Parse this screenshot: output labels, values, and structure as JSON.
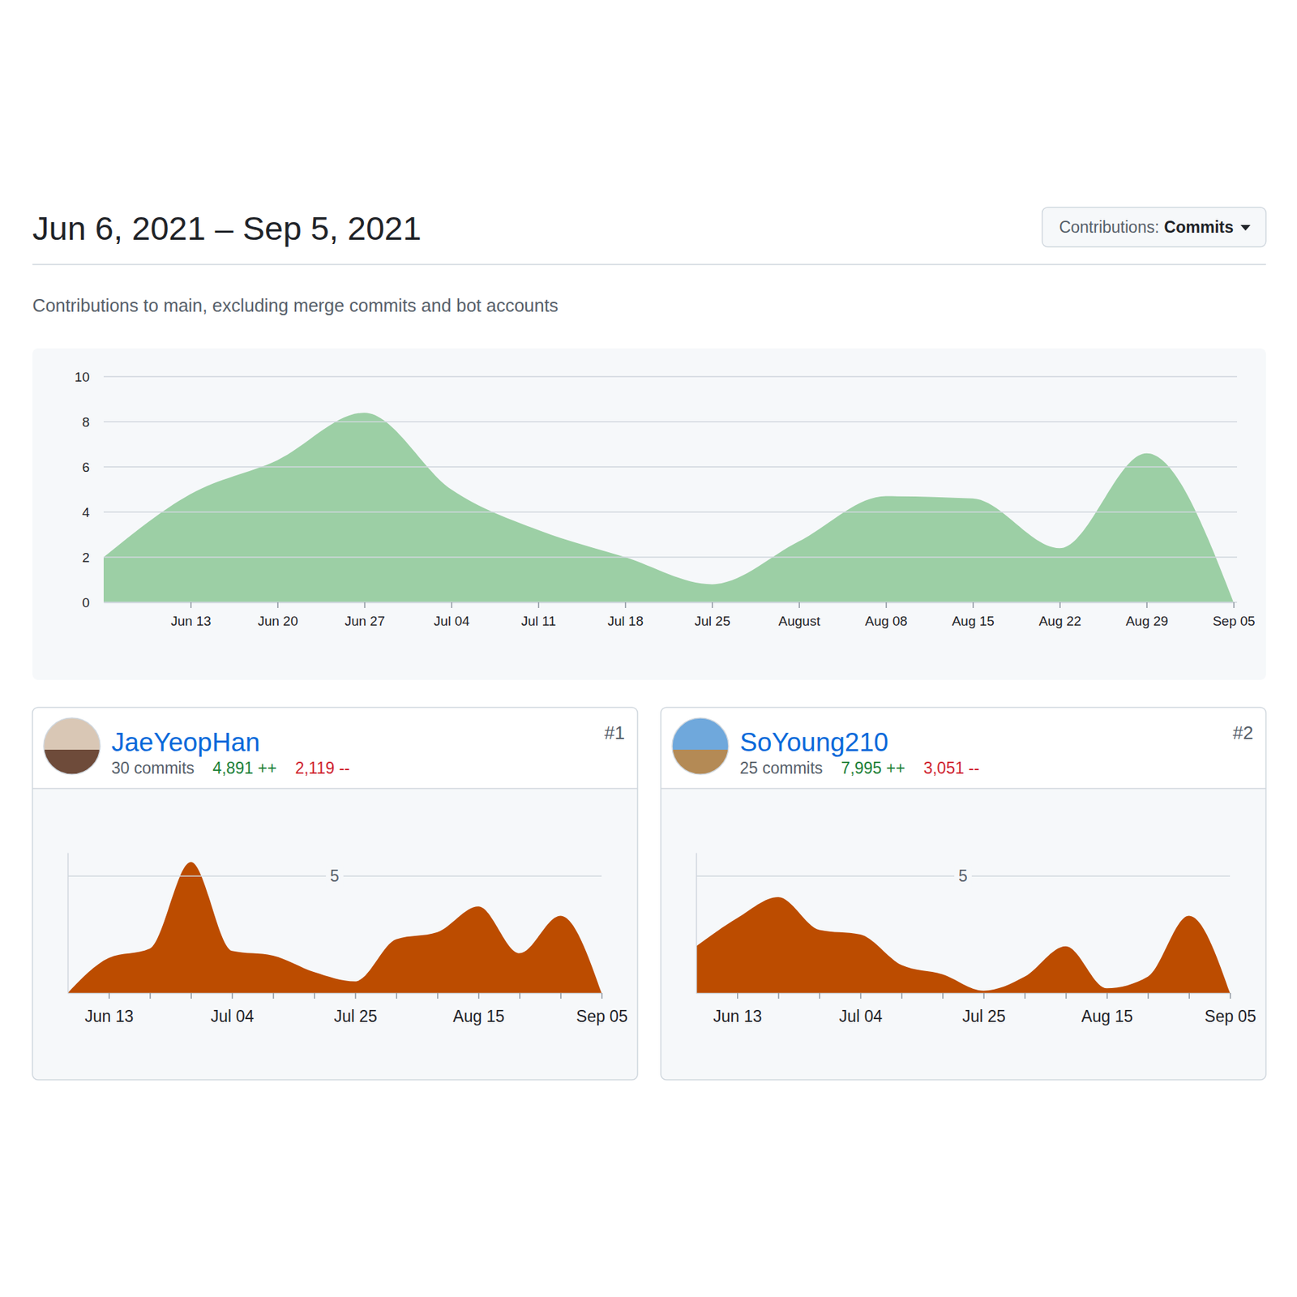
{
  "page": {
    "title": "Jun 6, 2021 – Sep 5, 2021",
    "filter_label": "Contributions:",
    "filter_value": "Commits",
    "subtitle": "Contributions to main, excluding merge commits and bot accounts"
  },
  "contributors": [
    {
      "name": "JaeYeopHan",
      "rank": "#1",
      "commits": "30 commits",
      "additions": "4,891 ++",
      "deletions": "2,119 --"
    },
    {
      "name": "SoYoung210",
      "rank": "#2",
      "commits": "25 commits",
      "additions": "7,995 ++",
      "deletions": "3,051 --"
    }
  ],
  "chart_data": [
    {
      "type": "area",
      "categories": [
        null,
        "Jun 13",
        "Jun 20",
        "Jun 27",
        "Jul 04",
        "Jul 11",
        "Jul 18",
        "Jul 25",
        "August",
        "Aug 08",
        "Aug 15",
        "Aug 22",
        "Aug 29",
        "Sep 05"
      ],
      "values": [
        2,
        4.8,
        6.3,
        8.4,
        5,
        3.2,
        2,
        0.8,
        2.7,
        4.7,
        4.6,
        2.4,
        6.6,
        0
      ],
      "color": "#9ccfa5",
      "ylim": [
        0,
        10
      ],
      "yticks": [
        0,
        2,
        4,
        6,
        8,
        10
      ],
      "grid": true
    },
    {
      "type": "area",
      "categories": [
        null,
        "Jun 13",
        null,
        null,
        "Jul 04",
        null,
        null,
        "Jul 25",
        null,
        null,
        "Aug 15",
        null,
        null,
        "Sep 05"
      ],
      "values": [
        0,
        1.5,
        1.9,
        5.6,
        1.8,
        1.6,
        0.9,
        0.5,
        2.3,
        2.6,
        3.7,
        1.7,
        3.3,
        0
      ],
      "color": "#bc4c00",
      "ylim": [
        0,
        6
      ],
      "yticks": [
        5
      ],
      "grid": true
    },
    {
      "type": "area",
      "categories": [
        null,
        "Jun 13",
        null,
        null,
        "Jul 04",
        null,
        null,
        "Jul 25",
        null,
        null,
        "Aug 15",
        null,
        null,
        "Sep 05"
      ],
      "values": [
        2,
        3.2,
        4.1,
        2.7,
        2.5,
        1.2,
        0.8,
        0.1,
        0.7,
        2,
        0.2,
        0.7,
        3.3,
        0
      ],
      "color": "#bc4c00",
      "ylim": [
        0,
        6
      ],
      "yticks": [
        5
      ],
      "grid": true
    }
  ]
}
